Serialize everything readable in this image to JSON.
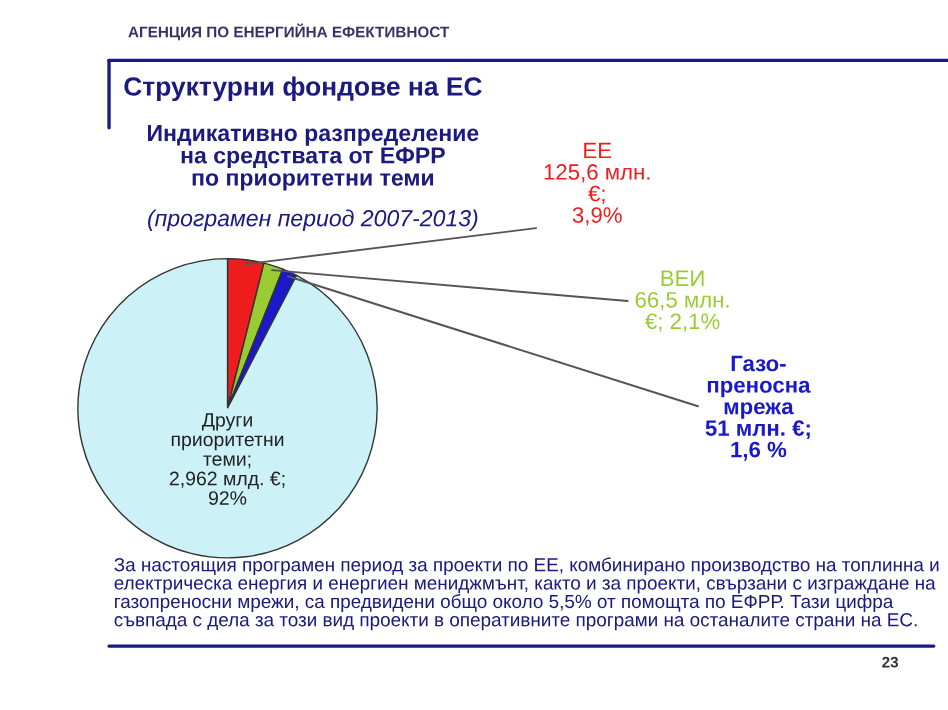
{
  "chart_data": {
    "type": "pie",
    "title": "Индикативно разпределение\nна средствата от ЕФРР\nпо приоритетни теми",
    "subtitle": "(програмен период 2007-2013)",
    "categories": [
      "ЕЕ",
      "ВЕИ",
      "Газо-\nпреносна\nмрежа",
      "Други\nприоритетни\nтеми"
    ],
    "values": [
      3.9,
      2.1,
      1.6,
      92
    ],
    "value_labels": [
      "\n125,6 млн.\n€;\n3,9%",
      "\n66,5 млн.\n€; 2,1%",
      "\n51 млн. €;\n1,6 %",
      ";\n2,962 млд. €;\n92%"
    ],
    "colors": [
      "#ee1c1c",
      "#99cc33",
      "#1a1acc",
      "#ccf2f8"
    ],
    "annotations": [
      "АГЕНЦИЯ ПО ЕНЕРГИЙНА ЕФЕКТИВНОСТ",
      "Структурни фондове на ЕС",
      "За настоящия програмен период за проекти по ЕЕ, комбинирано производство на топлинна и електрическа енергия и енергиен мениджмънт, както и за проекти, свързани с изграждане на газопреносни мрежи, са предвидени общо около 5,5% от помощта по ЕФРР. Тази цифра съвпада с дела за този вид проекти в оперативните програми на останалите страни на ЕС.",
      "23"
    ]
  }
}
